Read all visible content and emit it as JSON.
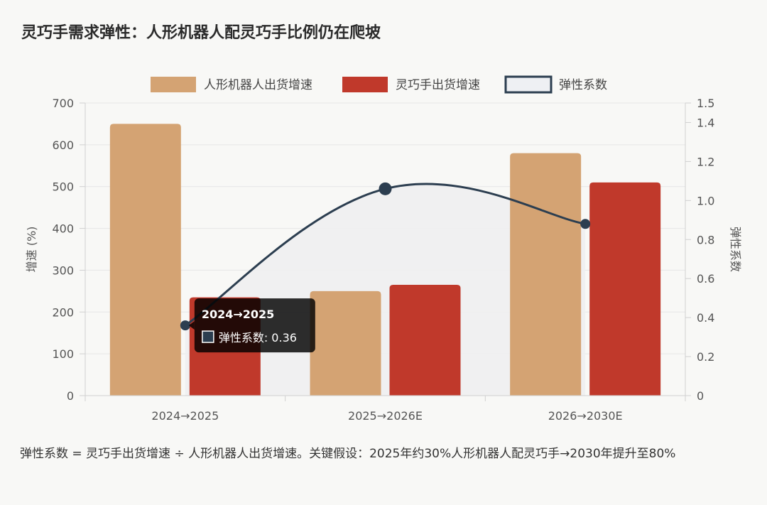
{
  "title": "灵巧手需求弹性：人形机器人配灵巧手比例仍在爬坡",
  "note": "弹性系数 = 灵巧手出货增速 ÷ 人形机器人出货增速。关键假设：2025年约30%人形机器人配灵巧手→2030年提升至80%",
  "colors": {
    "robot": "#d4a373",
    "hand": "#c0392b",
    "line": "#2c3e50",
    "fill": "#eeeef0"
  },
  "tooltip": {
    "title": "2024→2025",
    "body": "弹性系数: 0.36"
  },
  "chart_data": {
    "type": "bar",
    "categories": [
      "2024→2025",
      "2025→2026E",
      "2026→2030E"
    ],
    "series": [
      {
        "name": "人形机器人出货增速",
        "kind": "bar",
        "axis": "left",
        "values": [
          650,
          250,
          580
        ]
      },
      {
        "name": "灵巧手出货增速",
        "kind": "bar",
        "axis": "left",
        "values": [
          235,
          265,
          510
        ]
      },
      {
        "name": "弹性系数",
        "kind": "line",
        "axis": "right",
        "values": [
          0.36,
          1.06,
          0.88
        ]
      }
    ],
    "ylabel": "增速 (%)",
    "y2label": "弹性系数",
    "ylim": [
      0,
      700
    ],
    "y2lim": [
      0,
      1.5
    ],
    "yticks": [
      0,
      100,
      200,
      300,
      400,
      500,
      600,
      700
    ],
    "y2ticks": [
      0,
      0.2,
      0.4,
      0.6,
      0.8,
      1.0,
      1.2,
      1.4,
      1.5
    ],
    "y2tick_labels": [
      "0",
      "0.2",
      "0.4",
      "0.6",
      "0.8",
      "1.0",
      "1.2",
      "1.4",
      "1.5"
    ],
    "grid": true,
    "legend_position": "top"
  }
}
